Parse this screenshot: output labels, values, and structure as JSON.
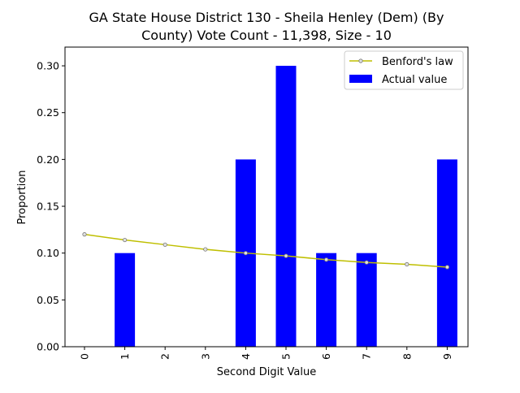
{
  "chart_data": {
    "type": "bar",
    "title_lines": [
      "GA State House District 130 - Sheila Henley (Dem) (By",
      "County) Vote Count - 11,398, Size - 10"
    ],
    "xlabel": "Second Digit Value",
    "ylabel": "Proportion",
    "categories": [
      "0",
      "1",
      "2",
      "3",
      "4",
      "5",
      "6",
      "7",
      "8",
      "9"
    ],
    "ylim": [
      0,
      0.32
    ],
    "yticks": [
      "0.00",
      "0.05",
      "0.10",
      "0.15",
      "0.20",
      "0.25",
      "0.30"
    ],
    "series": [
      {
        "name": "Actual value",
        "kind": "bar",
        "color": "#0000ff",
        "values": [
          0.0,
          0.1,
          0.0,
          0.0,
          0.2,
          0.3,
          0.1,
          0.1,
          0.0,
          0.2
        ]
      },
      {
        "name": "Benford's law",
        "kind": "line",
        "color": "#bfbf00",
        "values": [
          0.12,
          0.114,
          0.109,
          0.104,
          0.1,
          0.097,
          0.093,
          0.09,
          0.088,
          0.085
        ]
      }
    ],
    "legend_position": "top-right",
    "grid": false
  }
}
